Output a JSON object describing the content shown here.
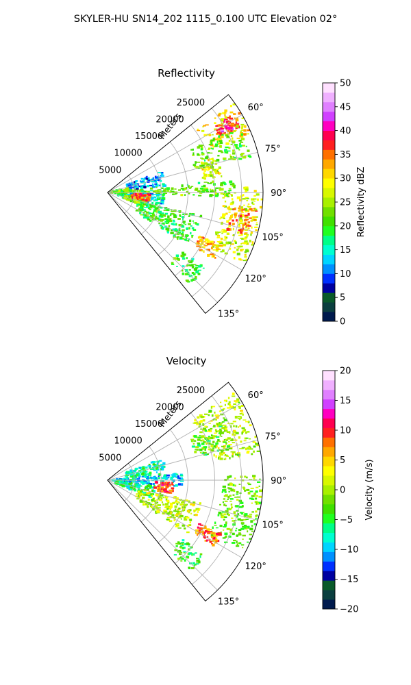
{
  "figure": {
    "suptitle": "SKYLER-HU  SN14_202  1115_0.100 UTC Elevation 02°"
  },
  "chart_data": [
    {
      "type": "heatmap",
      "title": "Reflectivity",
      "projection": "polar sector",
      "theta_range_deg": [
        51,
        141
      ],
      "r_range_m": [
        0,
        29000
      ],
      "r_axis_label": "Meters",
      "r_ticks": [
        "5000",
        "10000",
        "15000",
        "20000",
        "25000"
      ],
      "theta_ticks": [
        "60°",
        "75°",
        "90°",
        "105°",
        "120°",
        "135°"
      ],
      "grid": true,
      "colorbar": {
        "label": "Reflectivity dBZ",
        "range": [
          0,
          50
        ],
        "ticks": [
          "0",
          "5",
          "10",
          "15",
          "20",
          "25",
          "30",
          "35",
          "40",
          "45",
          "50"
        ],
        "colors": [
          "#001a4d",
          "#0b3f3f",
          "#0a5a2a",
          "#0000a0",
          "#0030ff",
          "#0090ff",
          "#00d5ff",
          "#00ffd0",
          "#00ff88",
          "#20ff20",
          "#40e000",
          "#70e000",
          "#a8f000",
          "#d8f800",
          "#ffff00",
          "#ffd800",
          "#ffa800",
          "#ff7000",
          "#ff2020",
          "#ff0050",
          "#ff00c0",
          "#d040ff",
          "#e080ff",
          "#f0b0ff",
          "#ffe0ff"
        ]
      },
      "echo_regions": [
        {
          "theta": [
            55,
            68
          ],
          "r": [
            20500,
            28800
          ],
          "value_dbz": 30
        },
        {
          "theta": [
            58,
            64
          ],
          "r": [
            23500,
            27500
          ],
          "value_dbz": 38
        },
        {
          "theta": [
            63,
            76
          ],
          "r": [
            17000,
            27500
          ],
          "value_dbz": 22
        },
        {
          "theta": [
            88,
            118
          ],
          "r": [
            21500,
            28800
          ],
          "value_dbz": 27
        },
        {
          "theta": [
            96,
            108
          ],
          "r": [
            23500,
            28000
          ],
          "value_dbz": 34
        },
        {
          "theta": [
            68,
            84
          ],
          "r": [
            3500,
            11000
          ],
          "value_dbz": 12
        },
        {
          "theta": [
            84,
            92
          ],
          "r": [
            2500,
            24000
          ],
          "value_dbz": 22
        },
        {
          "theta": [
            92,
            108
          ],
          "r": [
            2000,
            10500
          ],
          "value_dbz": 14
        },
        {
          "theta": [
            98,
            112
          ],
          "r": [
            3000,
            7500
          ],
          "value_dbz": 24
        },
        {
          "theta": [
            78,
            96
          ],
          "r": [
            300,
            3800
          ],
          "value_dbz": 22
        },
        {
          "theta": [
            92,
            102
          ],
          "r": [
            4500,
            8000
          ],
          "value_dbz": 36
        },
        {
          "theta": [
            104,
            124
          ],
          "r": [
            6000,
            18000
          ],
          "value_dbz": 20
        },
        {
          "theta": [
            115,
            122
          ],
          "r": [
            19000,
            23500
          ],
          "value_dbz": 32
        },
        {
          "theta": [
            72,
            82
          ],
          "r": [
            18000,
            21500
          ],
          "value_dbz": 28
        },
        {
          "theta": [
            128,
            138
          ],
          "r": [
            17500,
            23000
          ],
          "value_dbz": 20
        }
      ]
    },
    {
      "type": "heatmap",
      "title": "Velocity",
      "projection": "polar sector",
      "theta_range_deg": [
        51,
        141
      ],
      "r_range_m": [
        0,
        29000
      ],
      "r_axis_label": "Meters",
      "r_ticks": [
        "5000",
        "10000",
        "15000",
        "20000",
        "25000"
      ],
      "theta_ticks": [
        "60°",
        "75°",
        "90°",
        "105°",
        "120°",
        "135°"
      ],
      "grid": true,
      "colorbar": {
        "label": "Velocity (m/s)",
        "range": [
          -20,
          20
        ],
        "ticks": [
          "−20",
          "−15",
          "−10",
          "−5",
          "0",
          "5",
          "10",
          "15",
          "20"
        ],
        "colors": [
          "#001a4d",
          "#0b3f3f",
          "#0a5a2a",
          "#0000a0",
          "#0030ff",
          "#0090ff",
          "#00d5ff",
          "#00ffd0",
          "#00ff88",
          "#20ff20",
          "#40e000",
          "#70e000",
          "#a8f000",
          "#d8f800",
          "#ffff00",
          "#ffd800",
          "#ffa800",
          "#ff7000",
          "#ff2020",
          "#ff0050",
          "#ff00c0",
          "#d040ff",
          "#e080ff",
          "#f0b0ff",
          "#ffe0ff"
        ]
      },
      "echo_regions": [
        {
          "theta": [
            55,
            80
          ],
          "r": [
            19000,
            28800
          ],
          "value_ms": 1
        },
        {
          "theta": [
            63,
            76
          ],
          "r": [
            17000,
            24000
          ],
          "value_ms": -3
        },
        {
          "theta": [
            88,
            118
          ],
          "r": [
            21500,
            28800
          ],
          "value_ms": -2
        },
        {
          "theta": [
            68,
            84
          ],
          "r": [
            3500,
            11000
          ],
          "value_ms": -7
        },
        {
          "theta": [
            84,
            96
          ],
          "r": [
            1000,
            14000
          ],
          "value_ms": -9
        },
        {
          "theta": [
            96,
            112
          ],
          "r": [
            1500,
            9000
          ],
          "value_ms": -6
        },
        {
          "theta": [
            92,
            102
          ],
          "r": [
            9000,
            12500
          ],
          "value_ms": 9
        },
        {
          "theta": [
            104,
            124
          ],
          "r": [
            6000,
            18000
          ],
          "value_ms": 1
        },
        {
          "theta": [
            115,
            122
          ],
          "r": [
            19000,
            23500
          ],
          "value_ms": 8
        },
        {
          "theta": [
            128,
            138
          ],
          "r": [
            17500,
            23000
          ],
          "value_ms": -4
        }
      ]
    }
  ]
}
